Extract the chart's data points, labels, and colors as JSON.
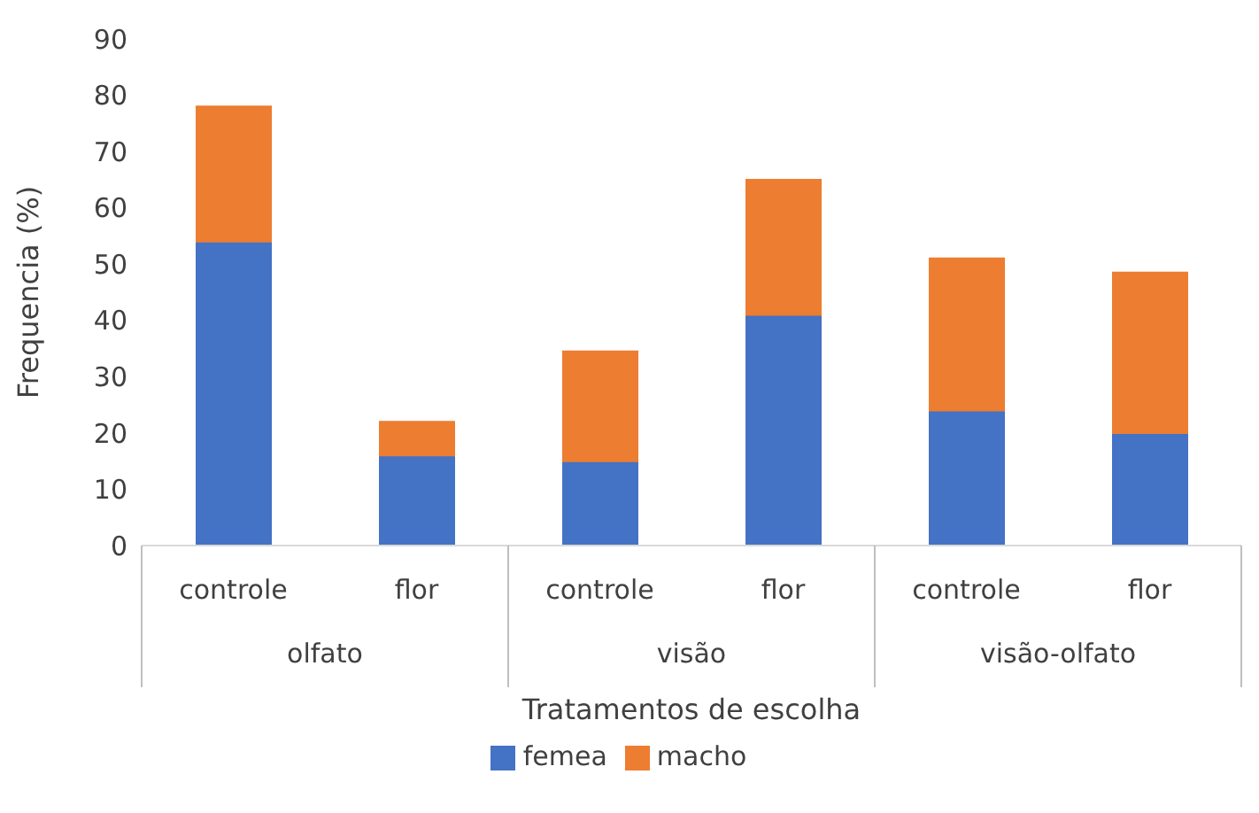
{
  "chart_data": {
    "type": "bar",
    "stacked": true,
    "xlabel": "Tratamentos de escolha",
    "ylabel": "Frequencia (%)",
    "categories": [
      "controle",
      "flor",
      "controle",
      "flor",
      "controle",
      "flor"
    ],
    "annotations": [
      "olfato",
      "visão",
      "visão-olfato"
    ],
    "series": [
      {
        "name": "femea",
        "color": "#4472c4",
        "values": [
          54,
          16,
          15,
          41,
          24,
          20
        ]
      },
      {
        "name": "macho",
        "color": "#ed7d31",
        "values": [
          24,
          6,
          19.5,
          24,
          27,
          28.5
        ]
      }
    ],
    "ylim": [
      0,
      90
    ],
    "yticks": [
      0,
      10,
      20,
      30,
      40,
      50,
      60,
      70,
      80,
      90
    ],
    "legend": "bottom"
  }
}
